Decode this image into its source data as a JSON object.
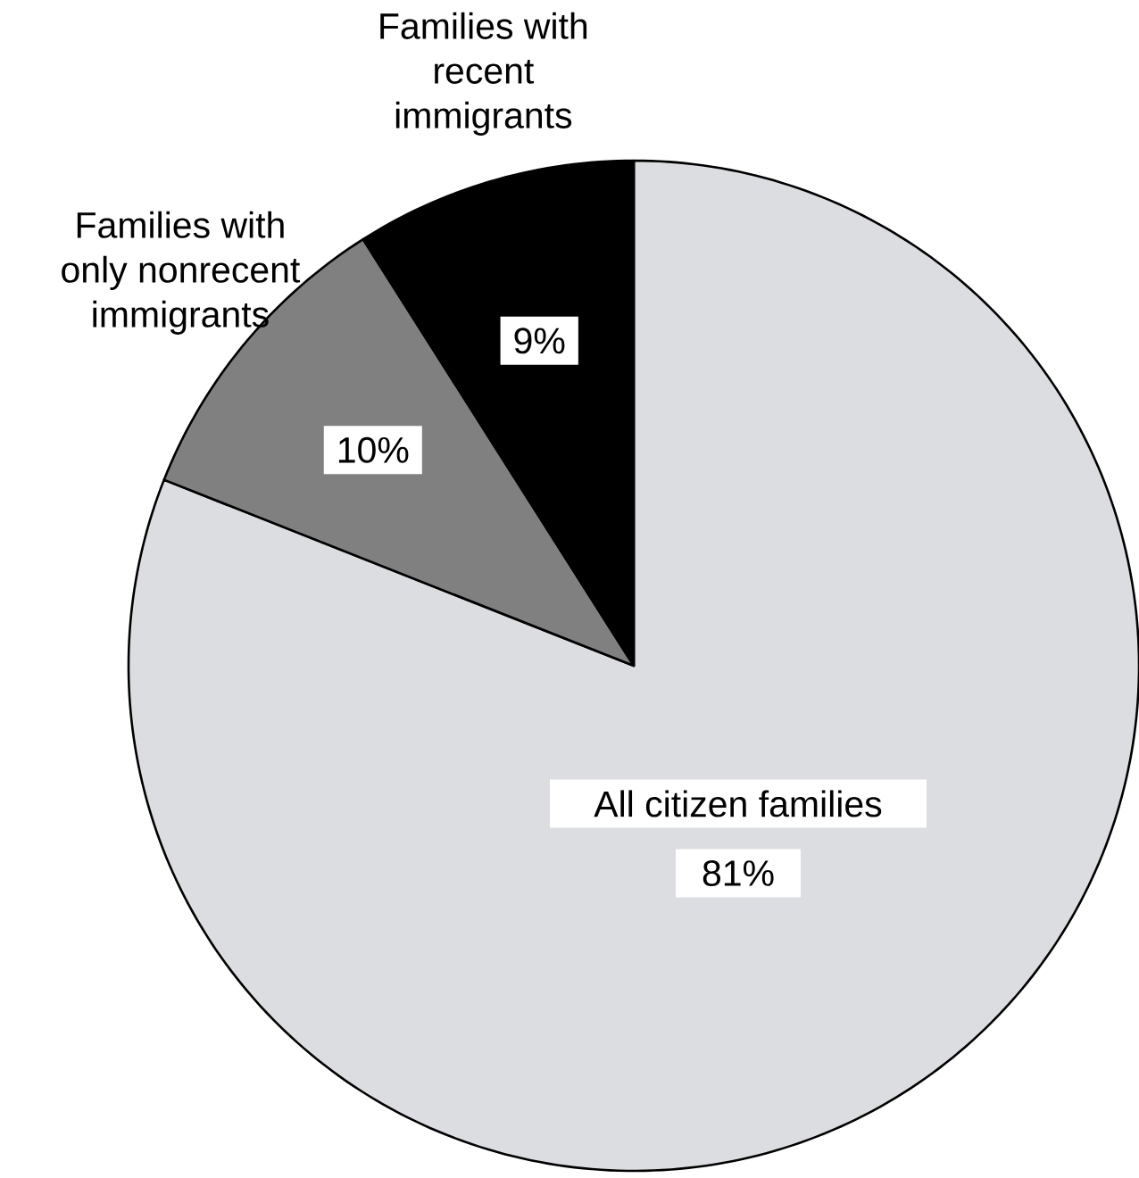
{
  "chart_data": {
    "type": "pie",
    "categories": [
      "All citizen families",
      "Families with only nonrecent immigrants",
      "Families with recent immigrants"
    ],
    "values": [
      81,
      10,
      9
    ],
    "colors": [
      "#dcdde0",
      "#808080",
      "#000000"
    ],
    "value_labels": [
      "81%",
      "10%",
      "9%"
    ]
  }
}
